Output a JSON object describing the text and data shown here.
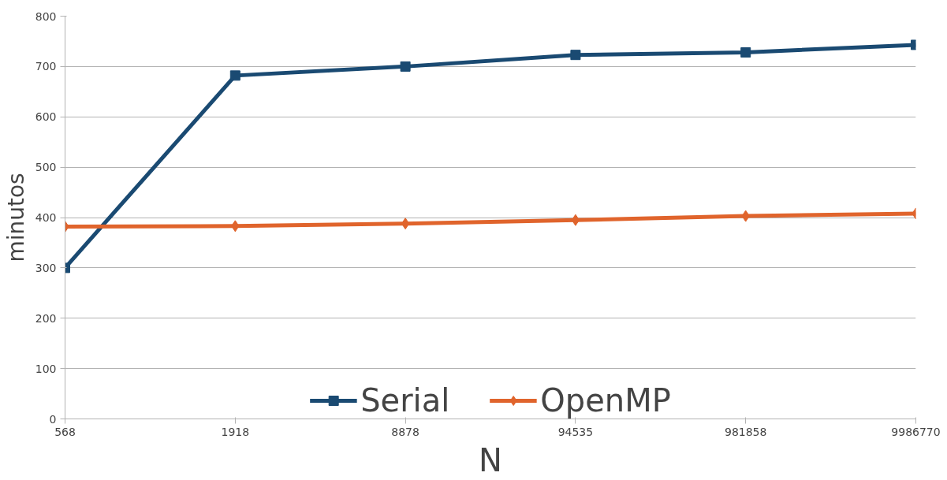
{
  "chart_data": {
    "type": "line",
    "xlabel": "N",
    "ylabel": "minutos",
    "categories": [
      "568",
      "1918",
      "8878",
      "94535",
      "981858",
      "9986770"
    ],
    "series": [
      {
        "name": "Serial",
        "color": "#1a4a72",
        "marker": "square",
        "values": [
          300,
          682,
          700,
          723,
          728,
          743
        ]
      },
      {
        "name": "OpenMP",
        "color": "#e0642c",
        "marker": "diamond",
        "values": [
          382,
          383,
          388,
          395,
          403,
          408
        ]
      }
    ],
    "ylim": [
      0,
      800
    ],
    "yticks": [
      0,
      100,
      200,
      300,
      400,
      500,
      600,
      700,
      800
    ],
    "grid": "y",
    "legend": "bottom",
    "line_style": "solid"
  }
}
